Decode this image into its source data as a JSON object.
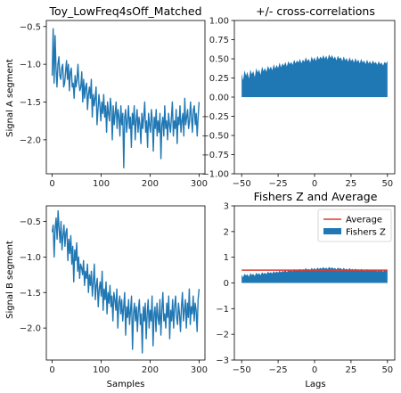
{
  "colors": {
    "series": "#1f77b4",
    "average": "#e03a2f",
    "axis": "#000000",
    "background": "#ffffff"
  },
  "chart_data": [
    {
      "type": "line",
      "title": "Toy_LowFreq4sOff_Matched",
      "xlabel": "",
      "ylabel": "Signal A segment",
      "xlim": [
        -12,
        312
      ],
      "ylim": [
        -2.45,
        -0.42
      ],
      "xticks": [
        0,
        100,
        200,
        300
      ],
      "yticks": [
        -0.5,
        -1.0,
        -1.5,
        -2.0
      ],
      "xtick_labels": [
        "0",
        "100",
        "200",
        "300"
      ],
      "ytick_labels": [
        "−0.5",
        "−1.0",
        "−1.5",
        "−2.0"
      ],
      "grid": false,
      "series": [
        {
          "x_start": 0,
          "x_end": 300,
          "values": [
            -1.15,
            -0.53,
            -1.25,
            -0.62,
            -1.05,
            -1.3,
            -1.0,
            -0.9,
            -1.15,
            -1.2,
            -1.05,
            -1.0,
            -1.3,
            -1.25,
            -1.1,
            -0.95,
            -1.2,
            -1.0,
            -1.35,
            -1.1,
            -1.05,
            -1.3,
            -1.25,
            -1.45,
            -1.15,
            -1.3,
            -1.2,
            -1.0,
            -1.25,
            -1.35,
            -1.3,
            -1.1,
            -1.5,
            -1.2,
            -1.45,
            -1.3,
            -1.25,
            -1.6,
            -1.4,
            -1.3,
            -1.45,
            -1.2,
            -1.7,
            -1.4,
            -1.55,
            -1.45,
            -1.3,
            -1.8,
            -1.6,
            -1.4,
            -1.55,
            -1.75,
            -1.5,
            -1.65,
            -1.4,
            -1.7,
            -1.55,
            -1.9,
            -1.5,
            -1.65,
            -1.75,
            -1.45,
            -1.6,
            -2.0,
            -1.55,
            -1.8,
            -1.65,
            -1.5,
            -1.85,
            -1.6,
            -1.7,
            -1.95,
            -1.55,
            -1.8,
            -1.65,
            -2.37,
            -1.7,
            -1.6,
            -1.9,
            -1.75,
            -1.55,
            -1.85,
            -1.7,
            -2.1,
            -1.65,
            -1.8,
            -1.55,
            -2.0,
            -1.75,
            -1.6,
            -1.9,
            -1.7,
            -1.8,
            -2.05,
            -1.65,
            -1.85,
            -1.7,
            -1.5,
            -1.9,
            -1.75,
            -2.1,
            -1.65,
            -1.8,
            -1.9,
            -1.6,
            -1.75,
            -2.15,
            -1.7,
            -1.85,
            -1.6,
            -1.95,
            -1.75,
            -1.9,
            -1.65,
            -2.25,
            -1.8,
            -1.7,
            -1.95,
            -1.55,
            -1.85,
            -1.75,
            -2.0,
            -1.65,
            -1.8,
            -1.9,
            -1.7,
            -1.5,
            -1.95,
            -1.75,
            -1.85,
            -1.6,
            -2.05,
            -1.7,
            -1.8,
            -1.55,
            -1.9,
            -1.75,
            -1.65,
            -1.95,
            -1.45,
            -1.8,
            -1.7,
            -1.6,
            -1.85,
            -1.75,
            -1.5,
            -1.7,
            -1.9,
            -1.6,
            -1.55,
            -1.8,
            -1.65,
            -1.95,
            -1.7,
            -1.5
          ]
        }
      ]
    },
    {
      "type": "area",
      "title": "+/- cross-correlations",
      "xlabel": "",
      "ylabel": "",
      "xlim": [
        -55,
        55
      ],
      "ylim": [
        -1.0,
        1.0
      ],
      "xticks": [
        -50,
        -25,
        0,
        25,
        50
      ],
      "yticks": [
        1.0,
        0.75,
        0.5,
        0.25,
        0.0,
        -0.25,
        -0.5,
        -0.75,
        -1.0
      ],
      "xtick_labels": [
        "−50",
        "−25",
        "0",
        "25",
        "50"
      ],
      "ytick_labels": [
        "1.00",
        "0.75",
        "0.50",
        "0.25",
        "0.00",
        "−0.25",
        "−0.50",
        "−0.75",
        "−1.00"
      ],
      "grid": false,
      "x_start": -50,
      "x_end": 50,
      "values": [
        0.31,
        0.22,
        0.35,
        0.28,
        0.33,
        0.24,
        0.36,
        0.3,
        0.34,
        0.26,
        0.38,
        0.32,
        0.36,
        0.29,
        0.4,
        0.34,
        0.38,
        0.33,
        0.41,
        0.36,
        0.4,
        0.35,
        0.43,
        0.37,
        0.42,
        0.38,
        0.45,
        0.39,
        0.44,
        0.41,
        0.46,
        0.4,
        0.47,
        0.43,
        0.46,
        0.42,
        0.49,
        0.44,
        0.48,
        0.45,
        0.5,
        0.44,
        0.49,
        0.46,
        0.52,
        0.47,
        0.5,
        0.45,
        0.53,
        0.48,
        0.52,
        0.47,
        0.54,
        0.49,
        0.53,
        0.5,
        0.55,
        0.5,
        0.54,
        0.49,
        0.56,
        0.51,
        0.55,
        0.5,
        0.53,
        0.48,
        0.54,
        0.5,
        0.52,
        0.47,
        0.53,
        0.48,
        0.51,
        0.46,
        0.52,
        0.47,
        0.5,
        0.45,
        0.51,
        0.46,
        0.49,
        0.44,
        0.5,
        0.45,
        0.48,
        0.43,
        0.49,
        0.44,
        0.47,
        0.43,
        0.48,
        0.44,
        0.46,
        0.42,
        0.47,
        0.43,
        0.45,
        0.41,
        0.46,
        0.44,
        0.47
      ]
    },
    {
      "type": "line",
      "title": "",
      "xlabel": "Samples",
      "ylabel": "Signal B segment",
      "xlim": [
        -12,
        312
      ],
      "ylim": [
        -2.45,
        -0.28
      ],
      "xticks": [
        0,
        100,
        200,
        300
      ],
      "yticks": [
        -0.5,
        -1.0,
        -1.5,
        -2.0
      ],
      "xtick_labels": [
        "0",
        "100",
        "200",
        "300"
      ],
      "ytick_labels": [
        "−0.5",
        "−1.0",
        "−1.5",
        "−2.0"
      ],
      "grid": false,
      "series": [
        {
          "x_start": 0,
          "x_end": 300,
          "values": [
            -0.65,
            -0.55,
            -1.0,
            -0.6,
            -0.45,
            -0.75,
            -0.35,
            -0.6,
            -0.8,
            -0.5,
            -0.9,
            -0.7,
            -0.55,
            -0.85,
            -0.65,
            -0.6,
            -1.05,
            -0.75,
            -0.95,
            -0.7,
            -1.1,
            -0.85,
            -1.35,
            -0.9,
            -1.05,
            -0.8,
            -1.2,
            -1.0,
            -1.3,
            -1.1,
            -1.15,
            -1.25,
            -1.05,
            -1.4,
            -1.2,
            -1.3,
            -1.1,
            -1.5,
            -1.25,
            -1.4,
            -1.2,
            -1.55,
            -1.35,
            -1.1,
            -1.6,
            -1.4,
            -1.3,
            -1.7,
            -1.45,
            -1.35,
            -1.55,
            -1.2,
            -1.75,
            -1.45,
            -1.6,
            -1.35,
            -1.8,
            -1.5,
            -1.65,
            -1.4,
            -1.7,
            -1.55,
            -1.9,
            -1.5,
            -1.6,
            -1.75,
            -1.45,
            -2.0,
            -1.65,
            -1.55,
            -1.8,
            -1.6,
            -1.9,
            -1.7,
            -1.5,
            -2.1,
            -1.7,
            -1.85,
            -1.6,
            -1.95,
            -1.75,
            -1.55,
            -2.3,
            -1.8,
            -1.65,
            -1.9,
            -1.7,
            -2.05,
            -1.75,
            -1.6,
            -1.95,
            -1.8,
            -2.35,
            -1.7,
            -1.9,
            -1.65,
            -2.15,
            -1.8,
            -1.6,
            -2.0,
            -1.75,
            -1.9,
            -1.55,
            -2.25,
            -1.8,
            -1.7,
            -2.05,
            -1.65,
            -1.85,
            -1.95,
            -1.6,
            -2.1,
            -1.75,
            -1.5,
            -1.9,
            -1.8,
            -2.0,
            -1.65,
            -1.85,
            -1.55,
            -2.15,
            -1.75,
            -1.9,
            -1.6,
            -2.0,
            -1.7,
            -1.55,
            -1.85,
            -1.95,
            -1.65,
            -1.8,
            -2.05,
            -1.7,
            -1.5,
            -1.9,
            -1.75,
            -1.6,
            -2.0,
            -1.65,
            -1.85,
            -1.45,
            -1.95,
            -1.7,
            -1.8,
            -1.55,
            -1.9,
            -1.65,
            -1.75,
            -2.05,
            -1.6,
            -1.45
          ]
        }
      ]
    },
    {
      "type": "area",
      "title": "Fishers Z and Average",
      "xlabel": "Lags",
      "ylabel": "",
      "xlim": [
        -55,
        55
      ],
      "ylim": [
        -3,
        3
      ],
      "xticks": [
        -50,
        -25,
        0,
        25,
        50
      ],
      "yticks": [
        3,
        2,
        1,
        0,
        -1,
        -2,
        -3
      ],
      "xtick_labels": [
        "−50",
        "−25",
        "0",
        "25",
        "50"
      ],
      "ytick_labels": [
        "3",
        "2",
        "1",
        "0",
        "−1",
        "−2",
        "−3"
      ],
      "grid": false,
      "legend_position": "top-right",
      "legend": [
        "Average",
        "Fishers Z"
      ],
      "average_value": 0.5,
      "x_start": -50,
      "x_end": 50,
      "values": [
        0.32,
        0.22,
        0.36,
        0.29,
        0.34,
        0.24,
        0.38,
        0.31,
        0.35,
        0.27,
        0.4,
        0.33,
        0.38,
        0.3,
        0.42,
        0.35,
        0.4,
        0.34,
        0.44,
        0.38,
        0.42,
        0.37,
        0.46,
        0.39,
        0.45,
        0.4,
        0.48,
        0.41,
        0.47,
        0.44,
        0.5,
        0.42,
        0.51,
        0.46,
        0.5,
        0.45,
        0.54,
        0.47,
        0.52,
        0.48,
        0.55,
        0.47,
        0.54,
        0.5,
        0.58,
        0.51,
        0.55,
        0.48,
        0.59,
        0.52,
        0.58,
        0.51,
        0.6,
        0.54,
        0.59,
        0.55,
        0.62,
        0.55,
        0.6,
        0.54,
        0.63,
        0.56,
        0.61,
        0.55,
        0.59,
        0.52,
        0.6,
        0.55,
        0.58,
        0.51,
        0.59,
        0.52,
        0.56,
        0.5,
        0.58,
        0.51,
        0.55,
        0.49,
        0.56,
        0.5,
        0.54,
        0.47,
        0.55,
        0.49,
        0.52,
        0.46,
        0.54,
        0.47,
        0.51,
        0.46,
        0.52,
        0.47,
        0.5,
        0.45,
        0.51,
        0.46,
        0.49,
        0.44,
        0.5,
        0.47,
        0.51
      ]
    }
  ]
}
